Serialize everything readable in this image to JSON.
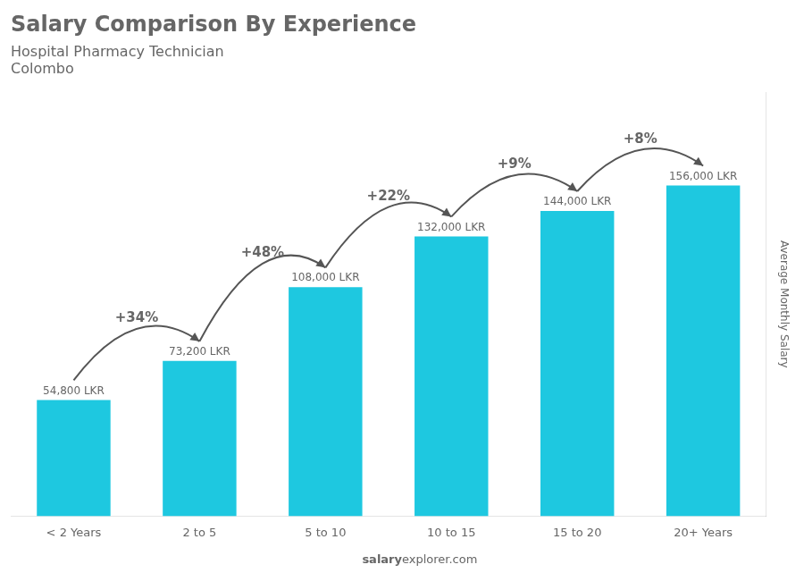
{
  "chart_data": {
    "type": "bar",
    "title": "Salary Comparison By Experience",
    "subtitle": "Hospital Pharmacy Technician",
    "city": "Colombo",
    "ylabel": "Average Monthly Salary",
    "footer": [
      "salary",
      "explorer.com"
    ],
    "categories": [
      "< 2 Years",
      "2 to 5",
      "5 to 10",
      "10 to 15",
      "15 to 20",
      "20+ Years"
    ],
    "values": [
      54800,
      73200,
      108000,
      132000,
      144000,
      156000
    ],
    "value_labels": [
      "54,800 LKR",
      "73,200 LKR",
      "108,000 LKR",
      "132,000 LKR",
      "144,000 LKR",
      "156,000 LKR"
    ],
    "data_labels": true,
    "color": "#1ec8e0",
    "ylim": [
      0,
      200000
    ],
    "tick_labels": "x",
    "grid": false,
    "annotations": [
      {
        "text": "+34%",
        "from": "< 2 Years",
        "to": "2 to 5"
      },
      {
        "text": "+48%",
        "from": "2 to 5",
        "to": "5 to 10"
      },
      {
        "text": "+22%",
        "from": "5 to 10",
        "to": "10 to 15"
      },
      {
        "text": "+9%",
        "from": "10 to 15",
        "to": "15 to 20"
      },
      {
        "text": "+8%",
        "from": "15 to 20",
        "to": "20+ Years"
      }
    ]
  }
}
